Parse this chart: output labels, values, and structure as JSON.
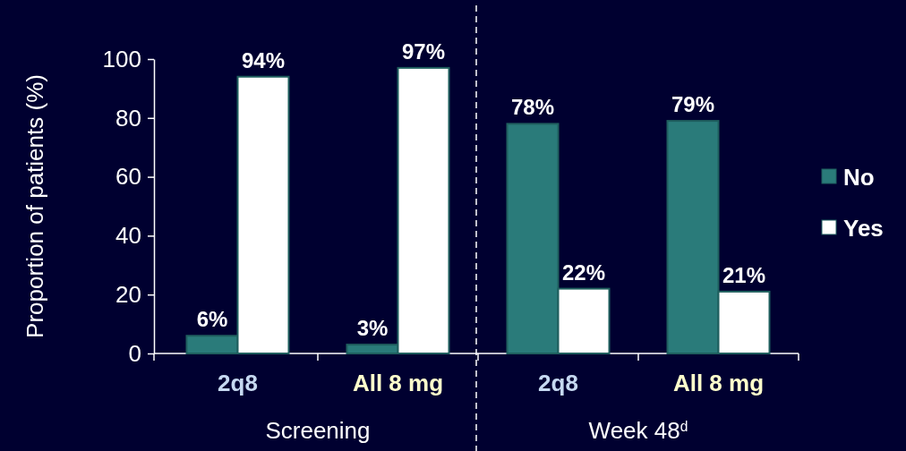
{
  "chart_data": {
    "type": "bar",
    "ylabel": "Proportion of patients (%)",
    "categories": [
      "2q8",
      "All 8 mg",
      "2q8",
      "All 8 mg"
    ],
    "series": [
      {
        "name": "No",
        "color": "#2a7b7a",
        "values": [
          6,
          3,
          78,
          79
        ],
        "value_labels": [
          "6%",
          "3%",
          "78%",
          "79%"
        ]
      },
      {
        "name": "Yes",
        "color": "#ffffff",
        "values": [
          94,
          97,
          22,
          21
        ],
        "value_labels": [
          "94%",
          "97%",
          "22%",
          "21%"
        ]
      }
    ],
    "ylim": [
      0,
      100
    ],
    "yticks": [
      0,
      20,
      40,
      60,
      80,
      100
    ],
    "grid": false,
    "legend": "right",
    "annotations": [
      "Screening",
      "Week 48$^{d}$"
    ]
  }
}
